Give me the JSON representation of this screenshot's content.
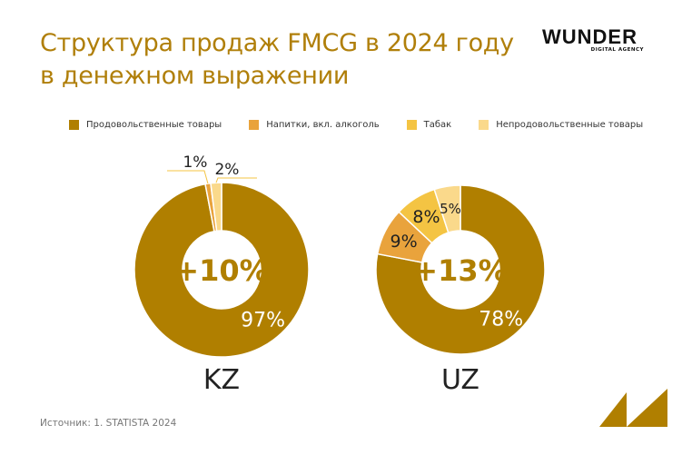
{
  "title_line1": "Структура продаж FMCG в 2024 году",
  "title_line2": "в денежном выражении",
  "logo": {
    "main": "WUNDER",
    "sub": "DIGITAL AGENCY"
  },
  "source": "Источник: 1. STATISTA 2024",
  "chart_data": {
    "type": "pie",
    "variant": "donut",
    "legend": [
      "Продовольственные товары",
      "Напитки, вкл. алкоголь",
      "Табак",
      "Непродовольственные товары"
    ],
    "legend_position": "top",
    "colors": [
      "#B07F00",
      "#E9A33C",
      "#F4C443",
      "#FAD98B"
    ],
    "charts": [
      {
        "label": "KZ",
        "center_text": "+10%",
        "values": [
          97,
          1,
          0,
          2
        ],
        "labels": [
          "97%",
          "1%",
          "",
          "2%"
        ]
      },
      {
        "label": "UZ",
        "center_text": "+13%",
        "values": [
          78,
          9,
          8,
          5
        ],
        "labels": [
          "78%",
          "9%",
          "8%",
          "5%"
        ]
      }
    ]
  }
}
